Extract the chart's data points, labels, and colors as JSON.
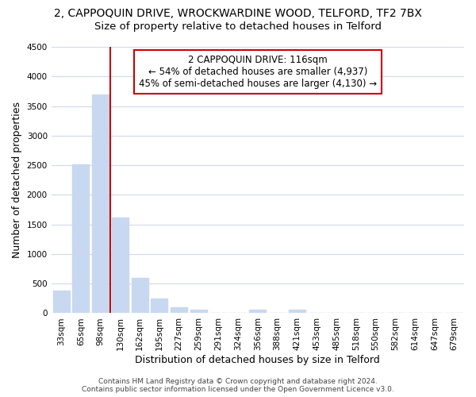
{
  "title_line1": "2, CAPPOQUIN DRIVE, WROCKWARDINE WOOD, TELFORD, TF2 7BX",
  "title_line2": "Size of property relative to detached houses in Telford",
  "xlabel": "Distribution of detached houses by size in Telford",
  "ylabel": "Number of detached properties",
  "bar_labels": [
    "33sqm",
    "65sqm",
    "98sqm",
    "130sqm",
    "162sqm",
    "195sqm",
    "227sqm",
    "259sqm",
    "291sqm",
    "324sqm",
    "356sqm",
    "388sqm",
    "421sqm",
    "453sqm",
    "485sqm",
    "518sqm",
    "550sqm",
    "582sqm",
    "614sqm",
    "647sqm",
    "679sqm"
  ],
  "bar_values": [
    380,
    2510,
    3700,
    1610,
    600,
    245,
    100,
    55,
    0,
    0,
    55,
    0,
    65,
    0,
    0,
    0,
    0,
    0,
    0,
    0,
    0
  ],
  "bar_color": "#c8d8f0",
  "vline_index": 2.5,
  "vline_color": "#cc0000",
  "ylim": [
    0,
    4500
  ],
  "yticks": [
    0,
    500,
    1000,
    1500,
    2000,
    2500,
    3000,
    3500,
    4000,
    4500
  ],
  "annotation_title": "2 CAPPOQUIN DRIVE: 116sqm",
  "annotation_line1": "← 54% of detached houses are smaller (4,937)",
  "annotation_line2": "45% of semi-detached houses are larger (4,130) →",
  "annotation_box_color": "#ffffff",
  "annotation_box_edge": "#cc0000",
  "footer_line1": "Contains HM Land Registry data © Crown copyright and database right 2024.",
  "footer_line2": "Contains public sector information licensed under the Open Government Licence v3.0.",
  "background_color": "#ffffff",
  "grid_color": "#d0daea",
  "title_fontsize": 10,
  "subtitle_fontsize": 9.5,
  "axis_label_fontsize": 9,
  "tick_fontsize": 7.5,
  "annotation_fontsize": 8.5,
  "footer_fontsize": 6.5
}
